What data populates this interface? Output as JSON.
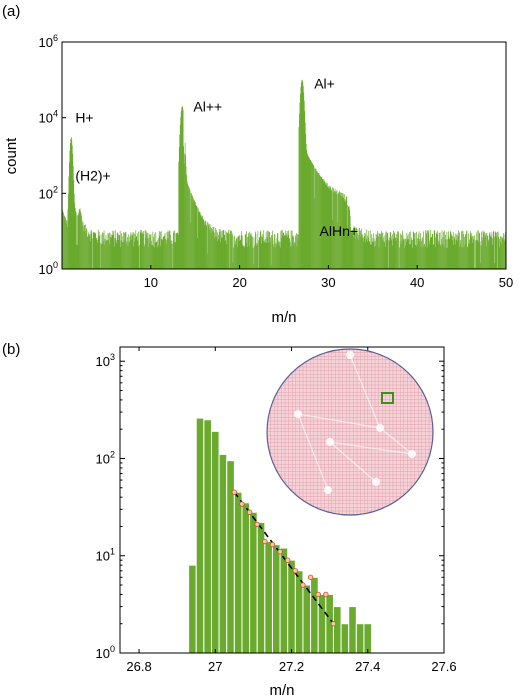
{
  "colors": {
    "bar": "#6aaa2e",
    "bar_edge": "#ffffff",
    "fit_line": "#000000",
    "marker_fill": "#f3c9a6",
    "marker_edge": "#c8552a",
    "wafer_fill": "#f6d3d8",
    "wafer_grid": "#e0a0aa",
    "wafer_edge": "#5a5f9a",
    "roi_box": "#3e8e1e"
  },
  "chart_data": [
    {
      "panel_label": "(a)",
      "type": "bar",
      "xlabel": "m/n",
      "ylabel": "count",
      "xlim": [
        0,
        50
      ],
      "ylim": [
        1,
        1000000
      ],
      "yscale": "log",
      "xticks": [
        10,
        20,
        30,
        40,
        50
      ],
      "yticks": [
        {
          "value": 1,
          "base": "10",
          "exp": "0"
        },
        {
          "value": 100,
          "base": "10",
          "exp": "2"
        },
        {
          "value": 10000,
          "base": "10",
          "exp": "4"
        },
        {
          "value": 1000000,
          "base": "10",
          "exp": "6"
        }
      ],
      "background_level": 8,
      "peaks": [
        {
          "x": 1.0,
          "y": 3000,
          "width": 0.12,
          "tail": 0.6
        },
        {
          "x": 2.0,
          "y": 20,
          "width": 0.12,
          "tail": 0.6
        },
        {
          "x": 13.5,
          "y": 20000,
          "width": 0.15,
          "tail": 0.7
        },
        {
          "x": 27.0,
          "y": 100000,
          "width": 0.15,
          "tail": 0.9
        }
      ],
      "shoulder": {
        "x_start": 27.5,
        "x_end": 32.5,
        "level": 80
      },
      "annotations": [
        {
          "text": "H+",
          "x": 1.5,
          "y": 10000
        },
        {
          "text": "(H2)+",
          "x": 1.5,
          "y": 300
        },
        {
          "text": "Al++",
          "x": 14.8,
          "y": 20000
        },
        {
          "text": "Al+",
          "x": 28.4,
          "y": 80000
        },
        {
          "text": "AlHn+",
          "x": 29.0,
          "y": 10
        }
      ]
    },
    {
      "panel_label": "(b)",
      "type": "bar",
      "xlabel": "m/n",
      "ylabel": "",
      "xlim": [
        26.75,
        27.6
      ],
      "ylim": [
        1,
        1400
      ],
      "yscale": "log",
      "xticks": [
        26.8,
        27,
        27.2,
        27.4,
        27.6
      ],
      "yticks": [
        {
          "value": 1,
          "base": "10",
          "exp": "0"
        },
        {
          "value": 10,
          "base": "10",
          "exp": "1"
        },
        {
          "value": 100,
          "base": "10",
          "exp": "2"
        },
        {
          "value": 1000,
          "base": "10",
          "exp": "3"
        }
      ],
      "bin_width": 0.02,
      "x": [
        26.94,
        26.96,
        26.98,
        27.0,
        27.02,
        27.04,
        27.06,
        27.08,
        27.1,
        27.12,
        27.14,
        27.16,
        27.18,
        27.2,
        27.22,
        27.24,
        27.26,
        27.28,
        27.3,
        27.32,
        27.34,
        27.36,
        27.38,
        27.4
      ],
      "values": [
        8,
        260,
        250,
        190,
        110,
        95,
        45,
        35,
        28,
        22,
        14,
        13,
        12,
        9,
        7,
        5,
        6,
        4,
        4,
        3,
        2,
        3,
        2,
        2
      ],
      "fit_line": {
        "x": [
          27.05,
          27.31
        ],
        "y": [
          45,
          2
        ]
      },
      "markers": {
        "x": [
          27.05,
          27.07,
          27.09,
          27.11,
          27.13,
          27.15,
          27.17,
          27.19,
          27.21,
          27.23,
          27.25,
          27.27,
          27.29,
          27.31
        ],
        "y": [
          45,
          34,
          28,
          21,
          14,
          13,
          11,
          9,
          7,
          5,
          6,
          4,
          4,
          2
        ]
      },
      "inset": {
        "type": "wafer-map",
        "content": "detector hit map with selected region"
      }
    }
  ]
}
